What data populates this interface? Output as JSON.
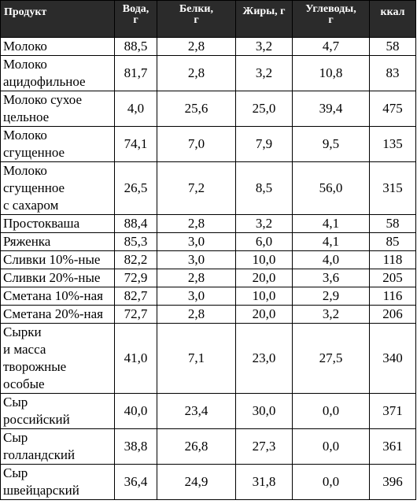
{
  "table": {
    "headers": {
      "product": "Продукт",
      "water": "Вода,\nг",
      "protein": "Белки,\nг",
      "fat": "Жиры, г",
      "carbs": "Углеводы,\nг",
      "kcal": "ккал"
    },
    "rows": [
      {
        "name": "Молоко",
        "water": "88,5",
        "protein": "2,8",
        "fat": "3,2",
        "carbs": "4,7",
        "kcal": "58"
      },
      {
        "name": "Молоко\nацидофильное",
        "water": "81,7",
        "protein": "2,8",
        "fat": "3,2",
        "carbs": "10,8",
        "kcal": "83"
      },
      {
        "name": "Молоко сухое\nцельное",
        "water": "4,0",
        "protein": "25,6",
        "fat": "25,0",
        "carbs": "39,4",
        "kcal": "475"
      },
      {
        "name": "Молоко\nсгущенное",
        "water": "74,1",
        "protein": "7,0",
        "fat": "7,9",
        "carbs": "9,5",
        "kcal": "135"
      },
      {
        "name": "Молоко\nсгущенное\nс сахаром",
        "water": "26,5",
        "protein": "7,2",
        "fat": "8,5",
        "carbs": "56,0",
        "kcal": "315"
      },
      {
        "name": "Простокваша",
        "water": "88,4",
        "protein": "2,8",
        "fat": "3,2",
        "carbs": "4,1",
        "kcal": "58"
      },
      {
        "name": "Ряженка",
        "water": "85,3",
        "protein": "3,0",
        "fat": "6,0",
        "carbs": "4,1",
        "kcal": "85"
      },
      {
        "name": "Сливки 10%-ные",
        "water": "82,2",
        "protein": "3,0",
        "fat": "10,0",
        "carbs": "4,0",
        "kcal": "118"
      },
      {
        "name": "Сливки 20%-ные",
        "water": "72,9",
        "protein": "2,8",
        "fat": "20,0",
        "carbs": "3,6",
        "kcal": "205"
      },
      {
        "name": "Сметана 10%-ная",
        "water": "82,7",
        "protein": "3,0",
        "fat": "10,0",
        "carbs": "2,9",
        "kcal": "116"
      },
      {
        "name": "Сметана 20%-ная",
        "water": "72,7",
        "protein": "2,8",
        "fat": "20,0",
        "carbs": "3,2",
        "kcal": "206"
      },
      {
        "name": "Сырки\nи масса\nтворожные\nособые",
        "water": "41,0",
        "protein": "7,1",
        "fat": "23,0",
        "carbs": "27,5",
        "kcal": "340"
      },
      {
        "name": "Сыр\nроссийский",
        "water": "40,0",
        "protein": "23,4",
        "fat": "30,0",
        "carbs": "0,0",
        "kcal": "371"
      },
      {
        "name": "Сыр\nголландский",
        "water": "38,8",
        "protein": "26,8",
        "fat": "27,3",
        "carbs": "0,0",
        "kcal": "361"
      },
      {
        "name": "Сыр\nшвейцарский",
        "water": "36,4",
        "protein": "24,9",
        "fat": "31,8",
        "carbs": "0,0",
        "kcal": "396"
      }
    ]
  }
}
